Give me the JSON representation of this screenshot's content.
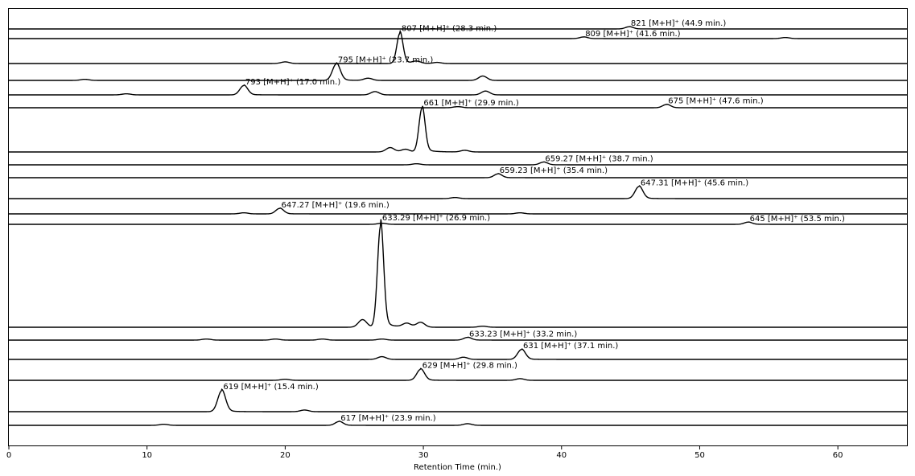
{
  "chart_data": {
    "type": "line",
    "xlabel": "Retention Time (min.)",
    "ylabel": "",
    "xlim": [
      0,
      65
    ],
    "xticks": [
      0,
      10,
      20,
      30,
      40,
      50,
      60
    ],
    "grid": false,
    "line_color": "#000000",
    "series": [
      {
        "label": "821 [M+H]⁺ (44.9 min.)",
        "mz": "821",
        "rt": 44.9,
        "peak_height": 0.04,
        "minor_peaks": []
      },
      {
        "label": "809 [M+H]⁺ (41.6 min.)",
        "mz": "809",
        "rt": 41.6,
        "peak_height": 0.03,
        "minor_peaks": [
          [
            56.2,
            0.02
          ]
        ]
      },
      {
        "label": "807 [M+H]⁺ (28.3 min.)",
        "mz": "807",
        "rt": 28.3,
        "peak_height": 0.55,
        "minor_peaks": [
          [
            20.0,
            0.03
          ],
          [
            29.5,
            0.04
          ],
          [
            31.0,
            0.02
          ]
        ]
      },
      {
        "label": "795 [M+H]⁺ (23.7 min.)",
        "mz": "795",
        "rt": 23.7,
        "peak_height": 0.3,
        "minor_peaks": [
          [
            5.5,
            0.02
          ],
          [
            26.0,
            0.04
          ],
          [
            34.3,
            0.08
          ]
        ]
      },
      {
        "label": "793 [M+H]⁺ (17.0 min.)",
        "mz": "793",
        "rt": 17.0,
        "peak_height": 0.17,
        "minor_peaks": [
          [
            26.5,
            0.06
          ],
          [
            34.5,
            0.07
          ],
          [
            8.5,
            0.02
          ]
        ]
      },
      {
        "label": "675 [M+H]⁺ (47.6 min.)",
        "mz": "675",
        "rt": 47.6,
        "peak_height": 0.06,
        "minor_peaks": [
          [
            32.5,
            0.02
          ]
        ]
      },
      {
        "label": "661 [M+H]⁺ (29.9 min.)",
        "mz": "661",
        "rt": 29.9,
        "peak_height": 0.8,
        "minor_peaks": [
          [
            27.6,
            0.08
          ],
          [
            28.7,
            0.05
          ],
          [
            33.0,
            0.03
          ]
        ]
      },
      {
        "label": "659.27 [M+H]⁺ (38.7 min.)",
        "mz": "659.27",
        "rt": 38.7,
        "peak_height": 0.05,
        "minor_peaks": [
          [
            29.5,
            0.02
          ]
        ]
      },
      {
        "label": "659.23 [M+H]⁺ (35.4 min.)",
        "mz": "659.23",
        "rt": 35.4,
        "peak_height": 0.07,
        "minor_peaks": []
      },
      {
        "label": "647.31 [M+H]⁺ (45.6 min.)",
        "mz": "647.31",
        "rt": 45.6,
        "peak_height": 0.22,
        "minor_peaks": [
          [
            32.3,
            0.02
          ]
        ]
      },
      {
        "label": "647.27 [M+H]⁺ (19.6 min.)",
        "mz": "647.27",
        "rt": 19.6,
        "peak_height": 0.1,
        "minor_peaks": [
          [
            17.0,
            0.02
          ],
          [
            37.0,
            0.02
          ]
        ]
      },
      {
        "label": "645 [M+H]⁺ (53.5 min.)",
        "mz": "645",
        "rt": 53.5,
        "peak_height": 0.04,
        "minor_peaks": [
          [
            27.0,
            0.02
          ]
        ]
      },
      {
        "label": "633.29 [M+H]⁺ (26.9 min.)",
        "mz": "633.29",
        "rt": 26.9,
        "peak_height": 1.85,
        "minor_peaks": [
          [
            25.6,
            0.14
          ],
          [
            28.8,
            0.07
          ],
          [
            29.8,
            0.09
          ],
          [
            34.3,
            0.02
          ]
        ]
      },
      {
        "label": "633.23 [M+H]⁺ (33.2 min.)",
        "mz": "633.23",
        "rt": 33.2,
        "peak_height": 0.05,
        "minor_peaks": [
          [
            14.3,
            0.02
          ],
          [
            19.3,
            0.02
          ],
          [
            22.7,
            0.02
          ],
          [
            27.0,
            0.02
          ]
        ]
      },
      {
        "label": "631 [M+H]⁺ (37.1 min.)",
        "mz": "631",
        "rt": 37.1,
        "peak_height": 0.18,
        "minor_peaks": [
          [
            27.0,
            0.05
          ],
          [
            32.9,
            0.04
          ]
        ]
      },
      {
        "label": "629 [M+H]⁺ (29.8 min.)",
        "mz": "629",
        "rt": 29.8,
        "peak_height": 0.2,
        "minor_peaks": [
          [
            20.0,
            0.02
          ],
          [
            37.0,
            0.03
          ]
        ]
      },
      {
        "label": "619 [M+H]⁺ (15.4 min.)",
        "mz": "619",
        "rt": 15.4,
        "peak_height": 0.38,
        "minor_peaks": [
          [
            21.4,
            0.03
          ]
        ]
      },
      {
        "label": "617 [M+H]⁺ (23.9 min.)",
        "mz": "617",
        "rt": 23.9,
        "peak_height": 0.07,
        "minor_peaks": [
          [
            11.2,
            0.02
          ],
          [
            33.2,
            0.03
          ]
        ]
      }
    ]
  }
}
